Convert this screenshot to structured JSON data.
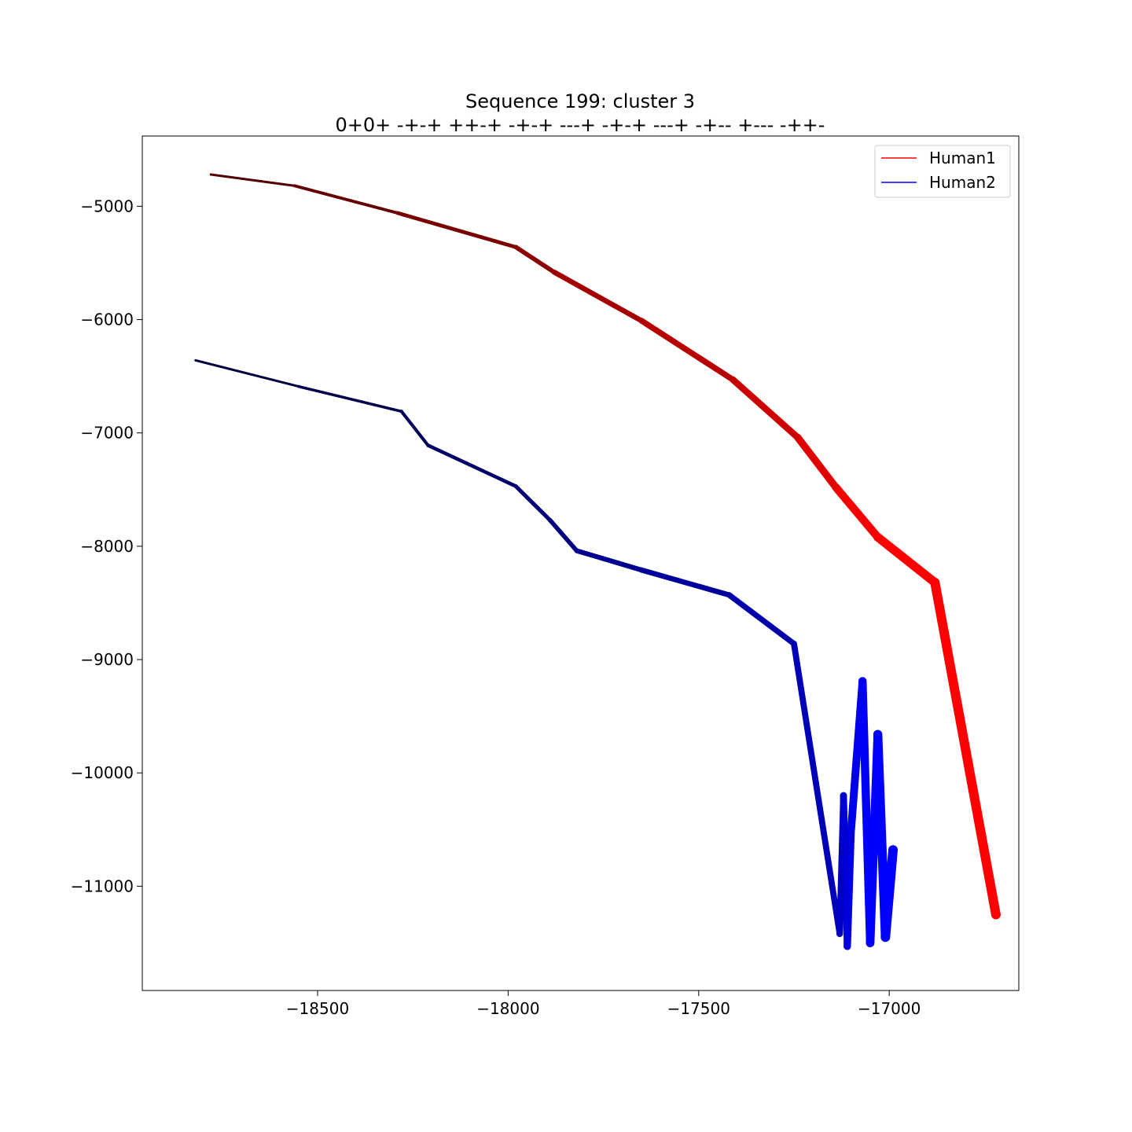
{
  "chart_data": {
    "type": "line",
    "title": "Sequence 199: cluster 3",
    "subtitle": "0+0+ -+-+ ++-+ -+-+ ---+ -+-+ ---+ -+-- +--- -++-",
    "xlabel": "",
    "ylabel": "",
    "xlim": [
      -18960,
      -16660
    ],
    "ylim": [
      -11920,
      -4380
    ],
    "xticks": [
      -18500,
      -18000,
      -17500,
      -17000
    ],
    "xtick_labels": [
      "−18500",
      "−18000",
      "−17500",
      "−17000"
    ],
    "yticks": [
      -5000,
      -6000,
      -7000,
      -8000,
      -9000,
      -10000,
      -11000
    ],
    "ytick_labels": [
      "−5000",
      "−6000",
      "−7000",
      "−8000",
      "−9000",
      "−10000",
      "−11000"
    ],
    "grid": false,
    "legend_position": "top-right",
    "series": [
      {
        "name": "Human1",
        "color": "#ff0000",
        "start_color": "#330000",
        "points": [
          [
            -18780,
            -4720
          ],
          [
            -18560,
            -4820
          ],
          [
            -18290,
            -5060
          ],
          [
            -17980,
            -5360
          ],
          [
            -17880,
            -5580
          ],
          [
            -17650,
            -6010
          ],
          [
            -17410,
            -6530
          ],
          [
            -17240,
            -7040
          ],
          [
            -17140,
            -7480
          ],
          [
            -17030,
            -7920
          ],
          [
            -16880,
            -8320
          ],
          [
            -16720,
            -11250
          ]
        ]
      },
      {
        "name": "Human2",
        "color": "#0000ff",
        "start_color": "#000020",
        "points": [
          [
            -18820,
            -6360
          ],
          [
            -18550,
            -6590
          ],
          [
            -18280,
            -6810
          ],
          [
            -18210,
            -7110
          ],
          [
            -17980,
            -7470
          ],
          [
            -17890,
            -7770
          ],
          [
            -17820,
            -8040
          ],
          [
            -17650,
            -8210
          ],
          [
            -17420,
            -8430
          ],
          [
            -17250,
            -8860
          ],
          [
            -17130,
            -11420
          ],
          [
            -17120,
            -10200
          ],
          [
            -17110,
            -11530
          ],
          [
            -17100,
            -10500
          ],
          [
            -17070,
            -9190
          ],
          [
            -17050,
            -11500
          ],
          [
            -17030,
            -9660
          ],
          [
            -17010,
            -11450
          ],
          [
            -16990,
            -10680
          ]
        ]
      }
    ]
  }
}
